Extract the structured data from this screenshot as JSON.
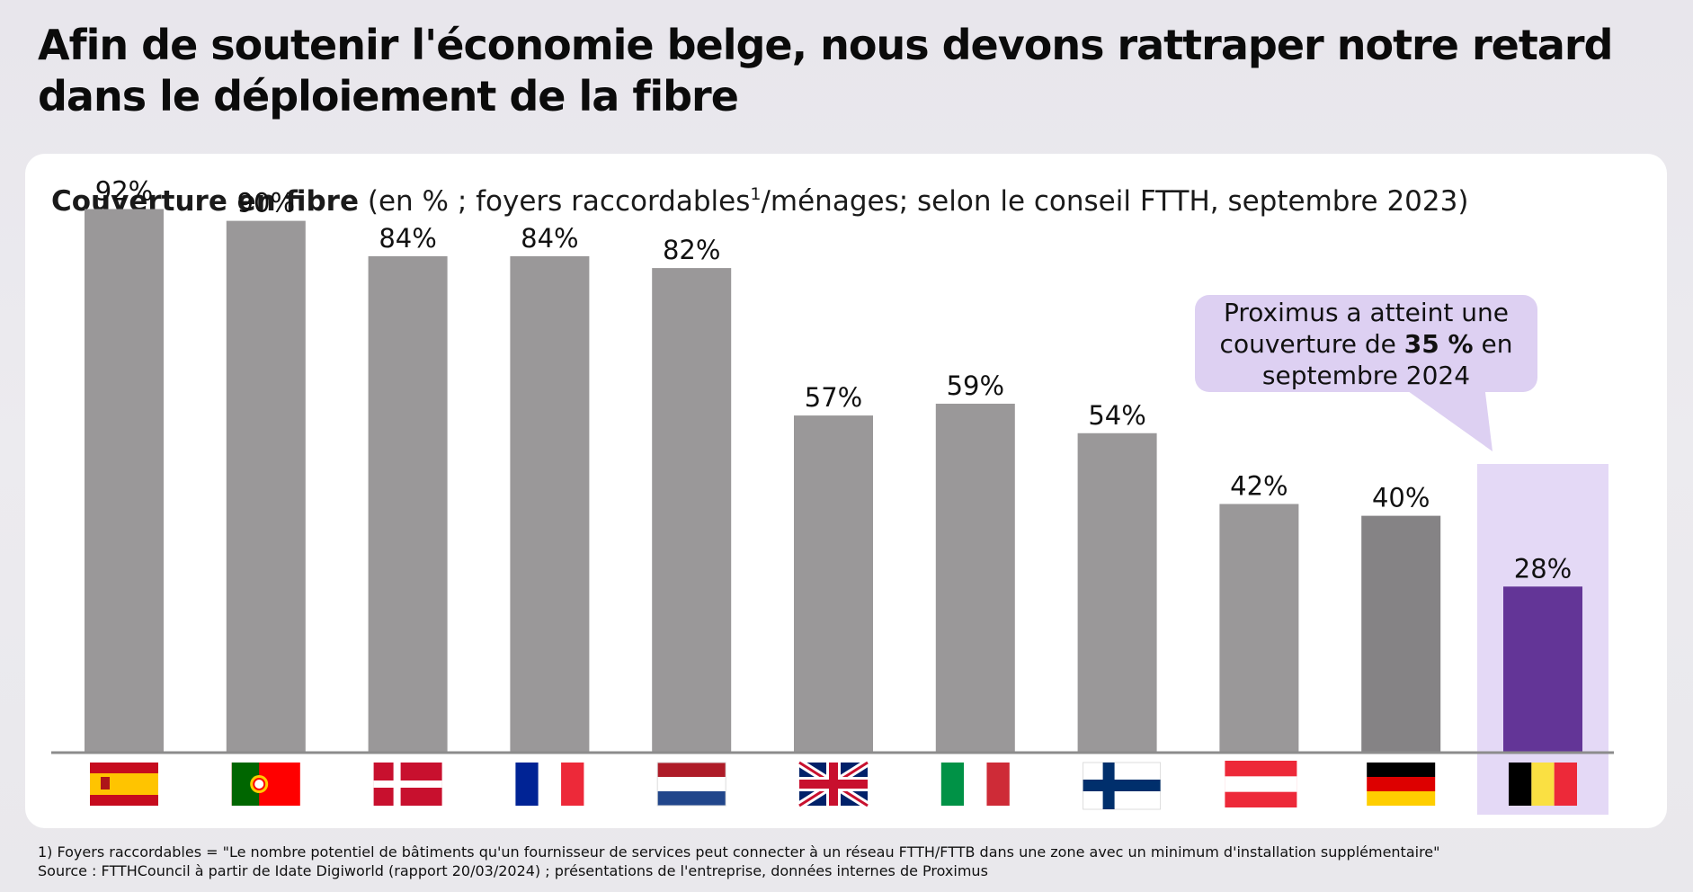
{
  "header": {
    "title": "Afin de soutenir l'économie belge, nous devons rattraper notre retard dans le déploiement de la fibre"
  },
  "chart_heading": {
    "bold": "Couverture en fibre",
    "pre": " (en % ; foyers raccordables",
    "sup": "1",
    "post": "/ménages; selon le conseil FTTH, septembre 2023)"
  },
  "callout": {
    "line1": "Proximus a atteint une",
    "line2_pre": "couverture de ",
    "line2_bold": "35 %",
    "line2_post": " en",
    "line3": "septembre 2024"
  },
  "footnotes": {
    "note1": "1) Foyers raccordables = \"Le nombre potentiel de bâtiments qu'un fournisseur de services peut connecter à un réseau FTTH/FTTB dans une zone avec un minimum d'installation supplémentaire\"",
    "source": "Source : FTTHCouncil à partir de Idate Digiworld (rapport 20/03/2024) ; présentations de l'entreprise, données internes de Proximus"
  },
  "colors": {
    "bar": "#9a9899",
    "bar_germany": "#858385",
    "bar_belgium": "#633597",
    "belgium_highlight": "#e4d9f6",
    "callout_bg": "#ddd0f2",
    "axis": "#8c8c8c"
  },
  "chart_data": {
    "type": "bar",
    "categories": [
      "Espagne",
      "Portugal",
      "Danemark",
      "France",
      "Pays-Bas",
      "Royaume-Uni",
      "Italie",
      "Finlande",
      "Autriche",
      "Allemagne",
      "Belgique"
    ],
    "category_display": "flags",
    "flag_icons": [
      "flag-spain-icon",
      "flag-portugal-icon",
      "flag-denmark-icon",
      "flag-france-icon",
      "flag-netherlands-icon",
      "flag-uk-icon",
      "flag-italy-icon",
      "flag-finland-icon",
      "flag-austria-icon",
      "flag-germany-icon",
      "flag-belgium-icon"
    ],
    "values": [
      92,
      90,
      84,
      84,
      82,
      57,
      59,
      54,
      42,
      40,
      28
    ],
    "value_labels": [
      "92%",
      "90%",
      "84%",
      "84%",
      "82%",
      "57%",
      "59%",
      "54%",
      "42%",
      "40%",
      "28%"
    ],
    "ylim": [
      0,
      100
    ],
    "highlight": "Belgique",
    "grid": false,
    "legend": "none"
  }
}
